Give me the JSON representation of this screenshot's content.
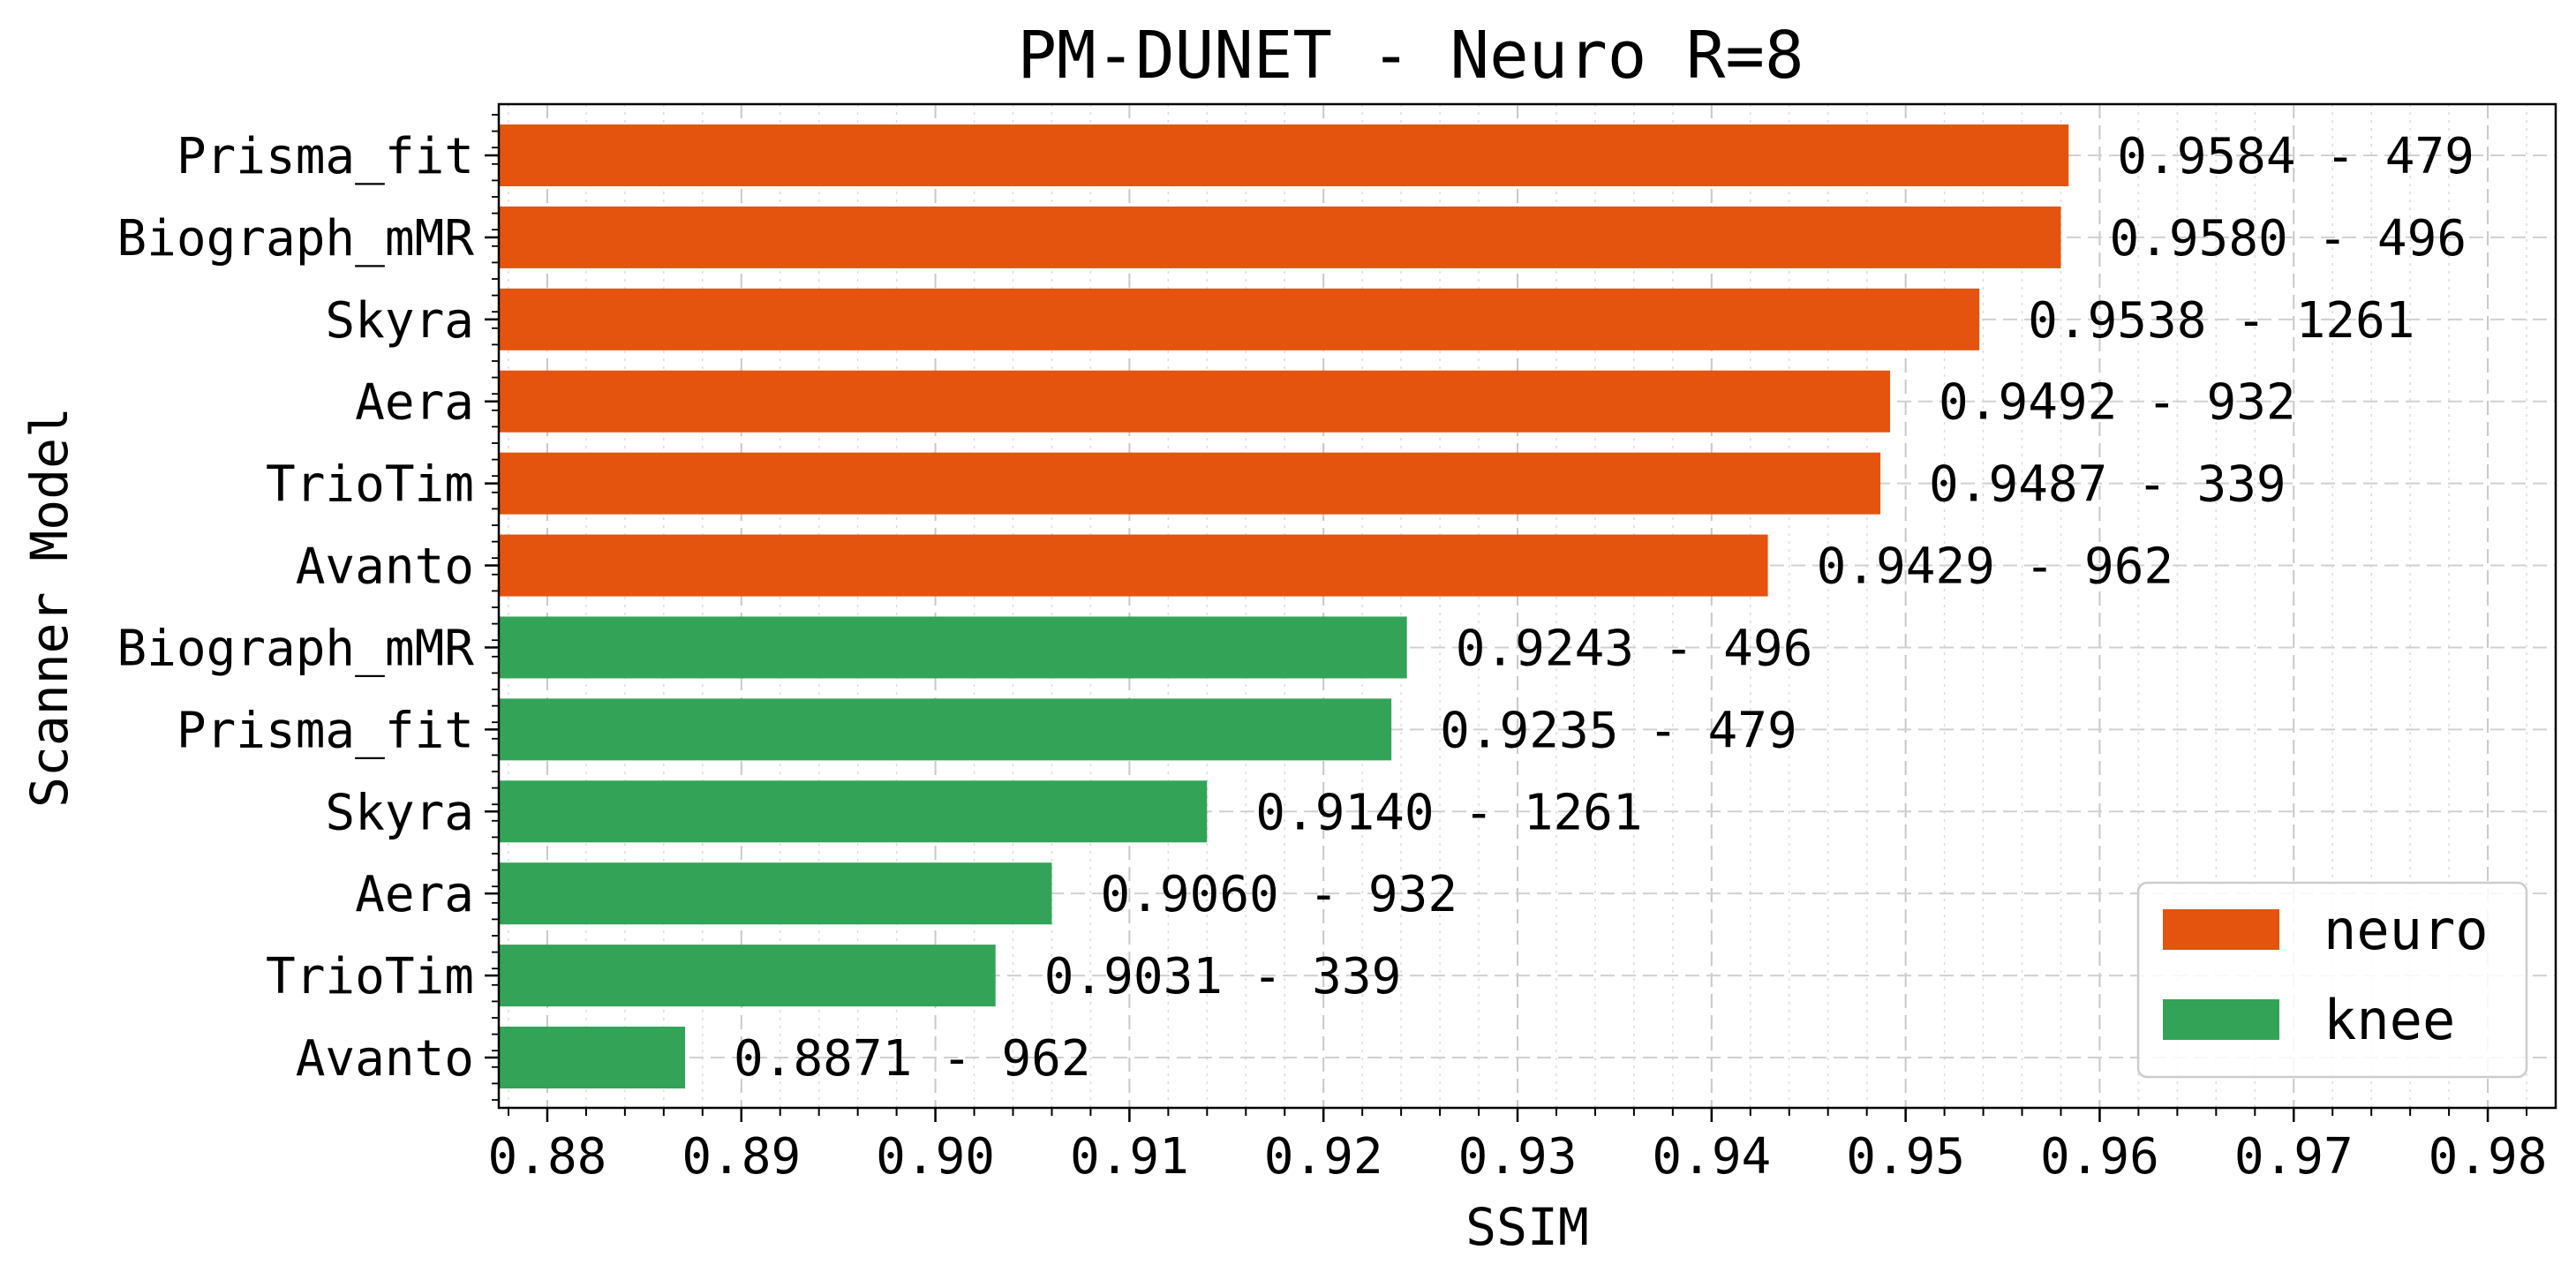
{
  "chart_data": {
    "type": "bar",
    "orientation": "horizontal",
    "title": "PM-DUNET - Neuro R=8",
    "xlabel": "SSIM",
    "ylabel": "Scanner Model",
    "xlim": [
      0.8775,
      0.9835
    ],
    "xticks": [
      "0.88",
      "0.89",
      "0.90",
      "0.91",
      "0.92",
      "0.93",
      "0.94",
      "0.95",
      "0.96",
      "0.97",
      "0.98"
    ],
    "grid": true,
    "legend": {
      "position": "lower-right",
      "entries": [
        {
          "label": "neuro",
          "color": "#e4540f"
        },
        {
          "label": "knee",
          "color": "#33a457"
        }
      ]
    },
    "bars": [
      {
        "category": "Prisma_fit",
        "series": "neuro",
        "value": 0.9584,
        "label": "0.9584 - 479"
      },
      {
        "category": "Biograph_mMR",
        "series": "neuro",
        "value": 0.958,
        "label": "0.9580 - 496"
      },
      {
        "category": "Skyra",
        "series": "neuro",
        "value": 0.9538,
        "label": "0.9538 - 1261"
      },
      {
        "category": "Aera",
        "series": "neuro",
        "value": 0.9492,
        "label": "0.9492 - 932"
      },
      {
        "category": "TrioTim",
        "series": "neuro",
        "value": 0.9487,
        "label": "0.9487 - 339"
      },
      {
        "category": "Avanto",
        "series": "neuro",
        "value": 0.9429,
        "label": "0.9429 - 962"
      },
      {
        "category": "Biograph_mMR",
        "series": "knee",
        "value": 0.9243,
        "label": "0.9243 - 496"
      },
      {
        "category": "Prisma_fit",
        "series": "knee",
        "value": 0.9235,
        "label": "0.9235 - 479"
      },
      {
        "category": "Skyra",
        "series": "knee",
        "value": 0.914,
        "label": "0.9140 - 1261"
      },
      {
        "category": "Aera",
        "series": "knee",
        "value": 0.906,
        "label": "0.9060 - 932"
      },
      {
        "category": "TrioTim",
        "series": "knee",
        "value": 0.9031,
        "label": "0.9031 - 339"
      },
      {
        "category": "Avanto",
        "series": "knee",
        "value": 0.8871,
        "label": "0.8871 - 962"
      }
    ]
  }
}
